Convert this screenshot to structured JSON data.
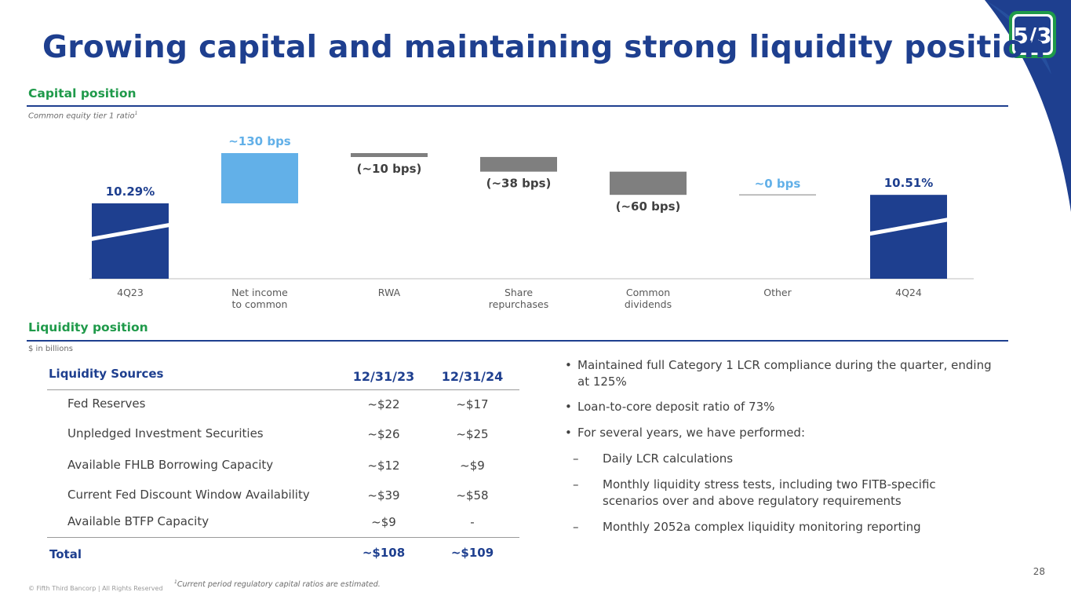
{
  "colors": {
    "brand_blue": "#1e3f8f",
    "light_blue": "#62b0e8",
    "gray_bar": "#7f7f7f",
    "green": "#1f9a4a"
  },
  "title": "Growing capital and maintaining strong liquidity position",
  "logo": {
    "icon": "fifth-third-logo",
    "text": "5/3"
  },
  "capital": {
    "label": "Capital position",
    "subtitle": "Common equity tier 1 ratio",
    "subtitle_sup": "1"
  },
  "chart_data": {
    "type": "waterfall",
    "title": "Common equity tier 1 ratio",
    "unit": "%",
    "categories": [
      "4Q23",
      "Net income\nto common",
      "RWA",
      "Share\nrepurchases",
      "Common\ndividends",
      "Other",
      "4Q24"
    ],
    "steps": [
      {
        "category": "4Q23",
        "kind": "total",
        "value": 10.29,
        "label": "10.29%"
      },
      {
        "category": "Net income to common",
        "kind": "increase",
        "value": 1.3,
        "label": "~130 bps"
      },
      {
        "category": "RWA",
        "kind": "decrease",
        "value": -0.1,
        "label": "(~10 bps)"
      },
      {
        "category": "Share repurchases",
        "kind": "decrease",
        "value": -0.38,
        "label": "(~38 bps)"
      },
      {
        "category": "Common dividends",
        "kind": "decrease",
        "value": -0.6,
        "label": "(~60 bps)"
      },
      {
        "category": "Other",
        "kind": "flat",
        "value": 0.0,
        "label": "~0 bps"
      },
      {
        "category": "4Q24",
        "kind": "total",
        "value": 10.51,
        "label": "10.51%"
      }
    ],
    "axis_break": true
  },
  "liquidity": {
    "label": "Liquidity position",
    "subtitle": "$ in billions",
    "table": {
      "header": {
        "name": "Liquidity Sources",
        "c1": "12/31/23",
        "c2": "12/31/24"
      },
      "rows": [
        {
          "name": "Fed Reserves",
          "c1": "~$22",
          "c2": "~$17"
        },
        {
          "name": "Unpledged Investment Securities",
          "c1": "~$26",
          "c2": "~$25"
        },
        {
          "name": "Available FHLB Borrowing Capacity",
          "c1": "~$12",
          "c2": "~$9"
        },
        {
          "name": "Current Fed Discount Window Availability",
          "c1": "~$39",
          "c2": "~$58"
        },
        {
          "name": "Available BTFP Capacity",
          "c1": "~$9",
          "c2": "-"
        }
      ],
      "total": {
        "name": "Total",
        "c1": "~$108",
        "c2": "~$109"
      }
    },
    "bullets": [
      {
        "mark": "•",
        "text": "Maintained full Category 1 LCR compliance during the quarter, ending at 125%"
      },
      {
        "mark": "•",
        "text": "Loan-to-core deposit ratio of 73%"
      },
      {
        "mark": "•",
        "text": "For several years, we have performed:"
      },
      {
        "mark": "–",
        "text": "Daily LCR calculations"
      },
      {
        "mark": "–",
        "text": "Monthly liquidity stress tests, including two FITB-specific scenarios over and above regulatory requirements"
      },
      {
        "mark": "–",
        "text": "Monthly 2052a complex liquidity monitoring reporting"
      }
    ]
  },
  "footer": {
    "copyright": "© Fifth Third Bancorp | All Rights Reserved",
    "footnote_sup": "1",
    "footnote": "Current period regulatory capital ratios are estimated.",
    "page": "28"
  }
}
